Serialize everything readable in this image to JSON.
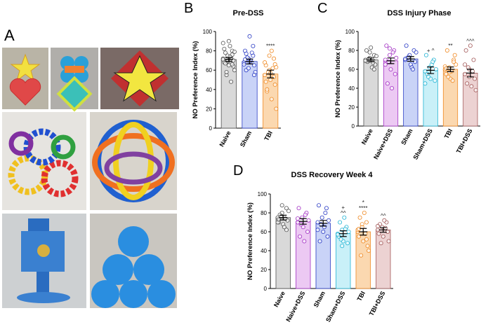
{
  "figure": {
    "panel_a": "A"
  },
  "chart_data": [
    {
      "type": "bar",
      "panel": "B",
      "title": "Pre-DSS",
      "y_label": "NO Preference Index (%)",
      "categories": [
        "Naive",
        "Sham",
        "TBI"
      ],
      "values": [
        71,
        69,
        56
      ],
      "errors": [
        2,
        2.5,
        4
      ],
      "fill_colors": [
        "#d9d9d9",
        "#c9d3f7",
        "#fbd8b0"
      ],
      "edge_colors": [
        "#555555",
        "#2a3bc4",
        "#f08a24"
      ],
      "points": [
        [
          72,
          75,
          80,
          68,
          65,
          70,
          78,
          85,
          60,
          55,
          73,
          71,
          69,
          76,
          82,
          90,
          64,
          67,
          74,
          79,
          58,
          48,
          88,
          70,
          66
        ],
        [
          68,
          72,
          75,
          80,
          95,
          65,
          60,
          70,
          58,
          73,
          78,
          66,
          62,
          85,
          71,
          69,
          55,
          77
        ],
        [
          55,
          60,
          72,
          65,
          50,
          45,
          38,
          30,
          20,
          58,
          62,
          68,
          75,
          53,
          48,
          57,
          66,
          40,
          80,
          63
        ]
      ],
      "annotations": [
        null,
        null,
        [
          "****"
        ]
      ],
      "ylim": [
        0,
        100
      ],
      "yticks": [
        0,
        20,
        40,
        60,
        80,
        100
      ]
    },
    {
      "type": "bar",
      "panel": "C",
      "title": "DSS Injury Phase",
      "y_label": "NO Preference Index (%)",
      "categories": [
        "Naive",
        "Naive+DSS",
        "Sham",
        "Sham+DSS",
        "TBI",
        "TBI+DSS"
      ],
      "values": [
        70,
        69,
        71,
        59,
        60,
        56
      ],
      "errors": [
        2,
        3,
        2.5,
        3.5,
        2.5,
        4
      ],
      "fill_colors": [
        "#d9d9d9",
        "#ecc9f3",
        "#c9d3f7",
        "#c9f0f8",
        "#fbd8b0",
        "#ecd2d2"
      ],
      "edge_colors": [
        "#555555",
        "#a332c4",
        "#2a3bc4",
        "#24b4d4",
        "#f08a24",
        "#a35a5a"
      ],
      "points": [
        [
          70,
          72,
          75,
          80,
          83,
          65,
          68,
          62,
          74,
          71,
          67,
          69,
          78,
          60
        ],
        [
          70,
          75,
          80,
          85,
          60,
          55,
          45,
          40,
          72,
          68,
          78,
          65,
          82
        ],
        [
          70,
          75,
          80,
          85,
          65,
          68,
          72,
          62,
          78,
          73,
          60,
          71
        ],
        [
          58,
          62,
          70,
          75,
          50,
          48,
          55,
          65,
          60,
          52,
          68,
          45
        ],
        [
          60,
          62,
          70,
          55,
          50,
          75,
          80,
          58,
          65,
          52,
          48,
          63,
          57,
          68,
          61
        ],
        [
          55,
          60,
          70,
          80,
          85,
          50,
          45,
          42,
          38,
          62,
          58,
          65,
          52
        ]
      ],
      "annotations": [
        null,
        null,
        null,
        [
          "+ ^"
        ],
        [
          "**"
        ],
        [
          "^^^"
        ]
      ],
      "ylim": [
        0,
        100
      ],
      "yticks": [
        0,
        20,
        40,
        60,
        80,
        100
      ]
    },
    {
      "type": "bar",
      "panel": "D",
      "title": "DSS Recovery Week 4",
      "y_label": "NO Preference Index (%)",
      "categories": [
        "Naive",
        "Naive+DSS",
        "Sham",
        "Sham+DSS",
        "TBI",
        "TBI+DSS"
      ],
      "values": [
        75,
        71,
        69,
        58,
        60,
        62
      ],
      "errors": [
        2.5,
        3,
        3,
        3,
        3.5,
        2.5
      ],
      "fill_colors": [
        "#d9d9d9",
        "#ecc9f3",
        "#c9d3f7",
        "#c9f0f8",
        "#fbd8b0",
        "#ecd2d2"
      ],
      "edge_colors": [
        "#555555",
        "#a332c4",
        "#2a3bc4",
        "#24b4d4",
        "#f08a24",
        "#a35a5a"
      ],
      "points": [
        [
          75,
          80,
          85,
          70,
          68,
          72,
          78,
          65,
          82,
          76,
          74,
          70,
          88,
          62,
          73
        ],
        [
          70,
          75,
          80,
          85,
          65,
          60,
          55,
          50,
          72,
          68,
          78,
          74
        ],
        [
          70,
          75,
          85,
          88,
          60,
          55,
          50,
          65,
          72,
          68,
          80,
          62
        ],
        [
          58,
          62,
          65,
          55,
          50,
          48,
          70,
          75,
          60,
          52,
          63,
          57,
          45
        ],
        [
          60,
          65,
          70,
          55,
          50,
          45,
          75,
          80,
          40,
          35,
          58,
          62,
          68,
          52,
          63
        ],
        [
          62,
          65,
          70,
          58,
          55,
          60,
          68,
          72,
          50,
          48,
          64,
          66
        ]
      ],
      "annotations": [
        null,
        null,
        null,
        [
          "+",
          "^^"
        ],
        [
          "*",
          "****"
        ],
        [
          "^^"
        ]
      ],
      "ylim": [
        0,
        100
      ],
      "yticks": [
        0,
        20,
        40,
        60,
        80,
        100
      ]
    }
  ]
}
